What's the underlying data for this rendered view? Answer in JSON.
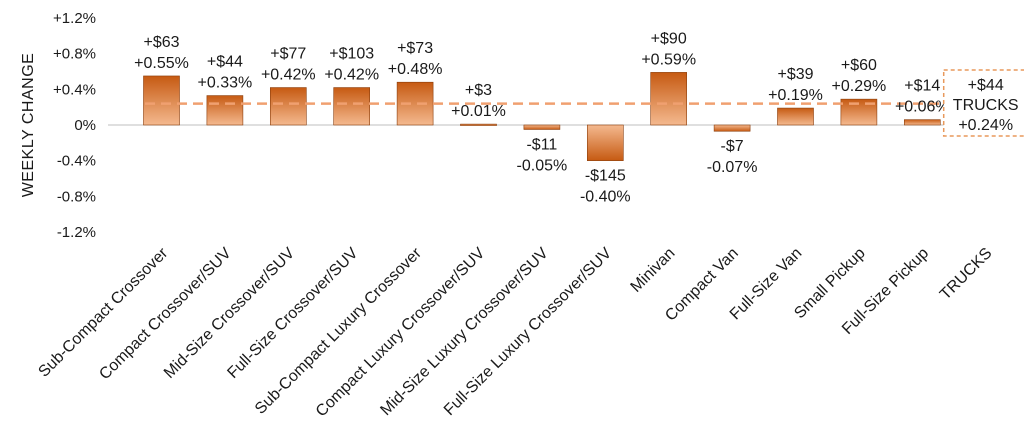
{
  "chart_data": {
    "type": "bar",
    "ylabel": "WEEKLY CHANGE",
    "yticks": [
      "+1.2%",
      "+0.8%",
      "+0.4%",
      "0%",
      "-0.4%",
      "-0.8%",
      "-1.2%"
    ],
    "ytick_values": [
      1.2,
      0.8,
      0.4,
      0,
      -0.4,
      -0.8,
      -1.2
    ],
    "ylim": [
      -1.2,
      1.2
    ],
    "grid": false,
    "categories": [
      "Sub-Compact Crossover",
      "Compact Crossover/SUV",
      "Mid-Size Crossover/SUV",
      "Full-Size Crossover/SUV",
      "Sub-Compact Luxury Crossover",
      "Compact Luxury Crossover/SUV",
      "Mid-Size Luxury Crossover/SUV",
      "Full-Size Luxury Crossover/SUV",
      "Minivan",
      "Compact Van",
      "Full-Size Van",
      "Small Pickup",
      "Full-Size Pickup",
      "TRUCKS"
    ],
    "values": [
      0.55,
      0.33,
      0.42,
      0.42,
      0.48,
      0.01,
      -0.05,
      -0.4,
      0.59,
      -0.07,
      0.19,
      0.29,
      0.06,
      0.24
    ],
    "dollar_labels": [
      "+$63",
      "+$44",
      "+$77",
      "+$103",
      "+$73",
      "+$3",
      "-$11",
      "-$145",
      "+$90",
      "-$7",
      "+$39",
      "+$60",
      "+$14",
      "+$44"
    ],
    "percent_labels": [
      "+0.55%",
      "+0.33%",
      "+0.42%",
      "+0.42%",
      "+0.48%",
      "+0.01%",
      "-0.05%",
      "-0.40%",
      "+0.59%",
      "-0.07%",
      "+0.19%",
      "+0.29%",
      "+0.06%",
      "+0.24%"
    ],
    "reference_line": {
      "value": 0.24,
      "style": "dashed"
    },
    "callout": {
      "category": "TRUCKS",
      "lines": [
        "+$44",
        "TRUCKS",
        "+0.24%"
      ]
    },
    "colors": {
      "bar_top": "#c65a12",
      "bar_bottom": "#f4b98f",
      "bar_edge": "#8a3d0a",
      "reference_line": "#f0a070",
      "callout_border": "#e8995c",
      "axis": "#bfbfbf"
    }
  }
}
